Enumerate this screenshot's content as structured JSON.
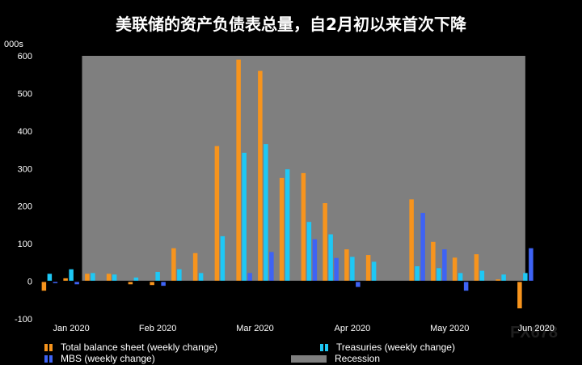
{
  "chart_data": {
    "type": "bar",
    "title": "美联储的资产负债表总量，自2月初以来首次下降",
    "unit_label": "000s",
    "ylim": [
      -100,
      600
    ],
    "yticks": [
      -100,
      0,
      100,
      200,
      300,
      400,
      500,
      600
    ],
    "xlabels": [
      "Jan 2020",
      "Feb 2020",
      "Mar 2020",
      "Apr 2020",
      "May 2020",
      "Jun 2020"
    ],
    "xlabel_week_positions": [
      1.5,
      5.5,
      10,
      14.5,
      19,
      23
    ],
    "recession_start_week": 2,
    "recession_end_week": 22.5,
    "weeks": 24,
    "series": [
      {
        "name": "Total balance sheet (weekly change)",
        "color": "#F7941D",
        "values": [
          -25,
          8,
          20,
          20,
          -8,
          -10,
          88,
          75,
          360,
          590,
          560,
          275,
          288,
          208,
          85,
          70,
          0,
          218,
          105,
          63,
          72,
          5,
          -72,
          0
        ]
      },
      {
        "name": "Treasuries (weekly change)",
        "color": "#1EC8F5",
        "values": [
          20,
          32,
          22,
          18,
          10,
          25,
          32,
          22,
          120,
          342,
          365,
          298,
          158,
          125,
          65,
          52,
          0,
          40,
          35,
          22,
          28,
          18,
          22,
          0
        ]
      },
      {
        "name": "MBS (weekly change)",
        "color": "#3E63F5",
        "values": [
          -5,
          -8,
          0,
          0,
          0,
          -12,
          0,
          0,
          0,
          22,
          78,
          0,
          112,
          62,
          -15,
          0,
          0,
          182,
          85,
          -25,
          0,
          0,
          88,
          0
        ]
      }
    ],
    "legend_extra": "Recession",
    "recession_color": "#7F7F7F"
  },
  "watermark": "FX678"
}
